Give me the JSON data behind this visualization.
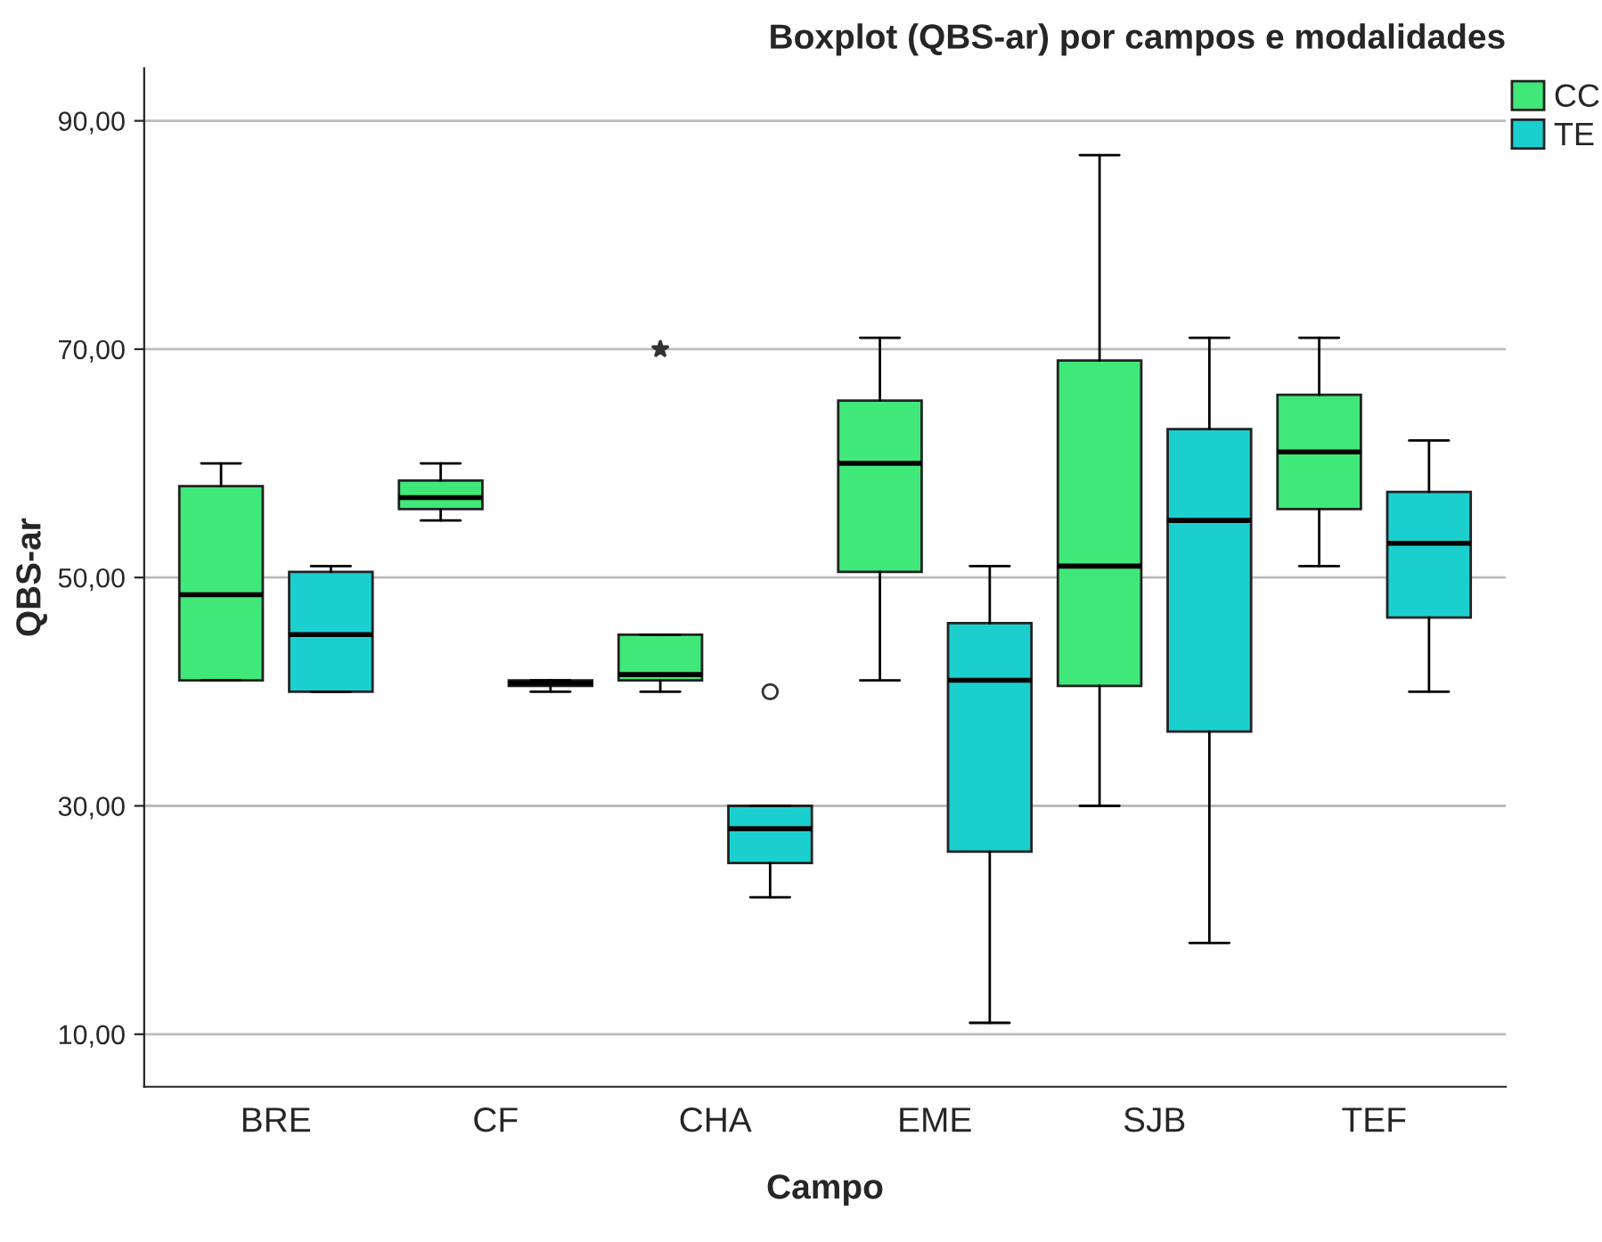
{
  "chart_data": {
    "type": "box",
    "title": "Boxplot (QBS-ar) por campos e modalidades",
    "xlabel": "Campo",
    "ylabel": "QBS-ar",
    "categories": [
      "BRE",
      "CF",
      "CHA",
      "EME",
      "SJB",
      "TEF"
    ],
    "series": [
      {
        "name": "CC",
        "color": "#40e87a",
        "marker": "star",
        "boxes": [
          {
            "low": 41,
            "q1": 41,
            "median": 48.5,
            "q3": 58,
            "high": 60
          },
          {
            "low": 55,
            "q1": 56,
            "median": 57,
            "q3": 58.5,
            "high": 60
          },
          {
            "low": 40,
            "q1": 41,
            "median": 41.5,
            "q3": 45,
            "high": 45,
            "outliers": [
              70
            ]
          },
          {
            "low": 41,
            "q1": 50.5,
            "median": 60,
            "q3": 65.5,
            "high": 71
          },
          {
            "low": 30,
            "q1": 40.5,
            "median": 51,
            "q3": 69,
            "high": 87
          },
          {
            "low": 51,
            "q1": 56,
            "median": 61,
            "q3": 66,
            "high": 71
          }
        ]
      },
      {
        "name": "TE",
        "color": "#1ccfcf",
        "marker": "circle",
        "boxes": [
          {
            "low": 40,
            "q1": 40,
            "median": 45,
            "q3": 50.5,
            "high": 51
          },
          {
            "low": 40,
            "q1": 40.5,
            "median": 40.75,
            "q3": 41,
            "high": 41
          },
          {
            "low": 22,
            "q1": 25,
            "median": 28,
            "q3": 30,
            "high": 30,
            "outliers": [
              40
            ]
          },
          {
            "low": 11,
            "q1": 26,
            "median": 41,
            "q3": 46,
            "high": 51
          },
          {
            "low": 18,
            "q1": 36.5,
            "median": 55,
            "q3": 63,
            "high": 71
          },
          {
            "low": 40,
            "q1": 46.5,
            "median": 53,
            "q3": 57.5,
            "high": 62
          }
        ]
      }
    ],
    "ylim": [
      5.4,
      94.6
    ],
    "yticks": [
      {
        "value": 10,
        "label": "10,00"
      },
      {
        "value": 30,
        "label": "30,00"
      },
      {
        "value": 50,
        "label": "50,00"
      },
      {
        "value": 70,
        "label": "70,00"
      },
      {
        "value": 90,
        "label": "90,00"
      }
    ],
    "grid": "y",
    "legend": "top right"
  }
}
